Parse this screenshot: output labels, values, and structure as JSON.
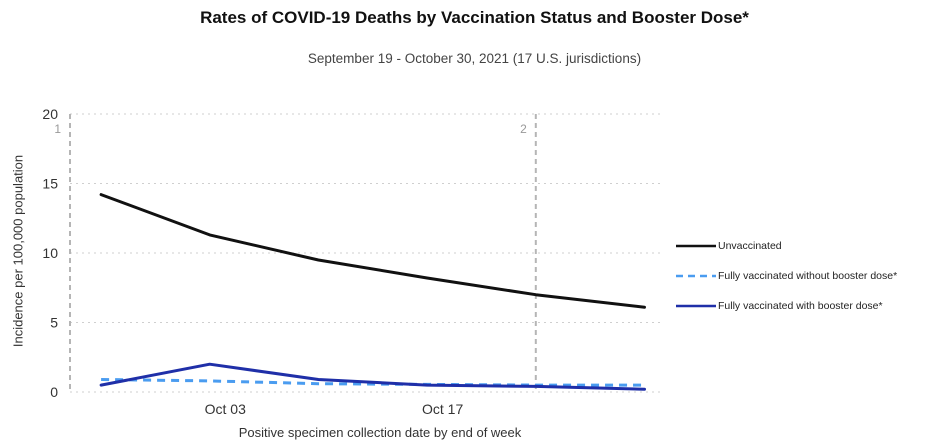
{
  "chart_data": {
    "type": "line",
    "title": "Rates of COVID-19 Deaths by Vaccination Status and Booster Dose*",
    "subtitle": "September 19 - October 30, 2021 (17 U.S. jurisdictions)",
    "xlabel": "Positive specimen collection date by end of week",
    "ylabel": "Incidence per 100,000 population",
    "x": [
      "2021-09-25",
      "2021-10-02",
      "2021-10-09",
      "2021-10-16",
      "2021-10-23",
      "2021-10-30"
    ],
    "xticks": [
      {
        "date": "2021-10-03",
        "label": "Oct 03"
      },
      {
        "date": "2021-10-17",
        "label": "Oct 17"
      }
    ],
    "xlim": [
      "2021-09-23",
      "2021-10-31"
    ],
    "ylim": [
      0,
      20
    ],
    "yticks": [
      0,
      5,
      10,
      15,
      20
    ],
    "grid": true,
    "period_markers": [
      {
        "date": "2021-09-23",
        "label": "1"
      },
      {
        "date": "2021-10-23",
        "label": "2"
      }
    ],
    "legend_position": "right",
    "series": [
      {
        "name": "Unvaccinated",
        "color": "#111111",
        "dash": "solid",
        "values": [
          14.2,
          11.3,
          9.5,
          8.2,
          7.0,
          6.1
        ]
      },
      {
        "name": "Fully vaccinated without booster dose*",
        "color": "#4a9cf0",
        "dash": "dashed",
        "values": [
          0.9,
          0.8,
          0.6,
          0.55,
          0.5,
          0.5
        ]
      },
      {
        "name": "Fully vaccinated with booster dose*",
        "color": "#1f2fa8",
        "dash": "solid",
        "values": [
          0.5,
          2.0,
          0.9,
          0.5,
          0.4,
          0.2
        ]
      }
    ]
  }
}
